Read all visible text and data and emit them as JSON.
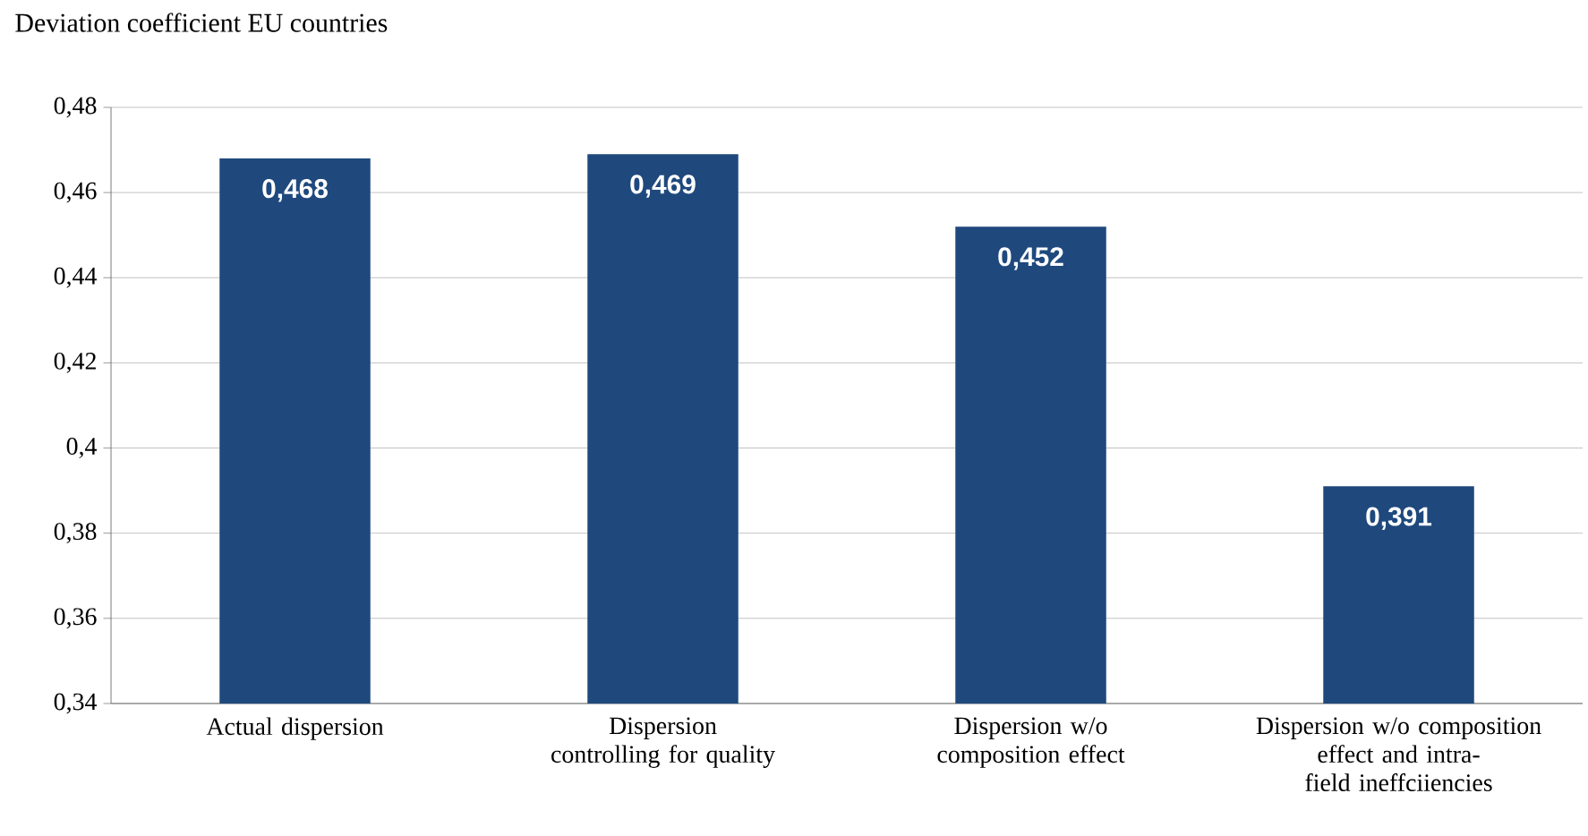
{
  "chart_data": {
    "type": "bar",
    "title": "Deviation coefficient EU countries",
    "categories": [
      "Actual dispersion",
      "Dispersion controlling for quality",
      "Dispersion w/o composition effect",
      "Dispersion w/o composition effect and intra-field ineffciiencies"
    ],
    "values": [
      0.468,
      0.469,
      0.452,
      0.391
    ],
    "value_labels": [
      "0,468",
      "0,469",
      "0,452",
      "0,391"
    ],
    "color": "#1f497d",
    "ylim": [
      0.34,
      0.48
    ],
    "yticks": [
      {
        "value": 0.34,
        "label": "0,34"
      },
      {
        "value": 0.36,
        "label": "0,36"
      },
      {
        "value": 0.38,
        "label": "0,38"
      },
      {
        "value": 0.4,
        "label": "0,4"
      },
      {
        "value": 0.42,
        "label": "0,42"
      },
      {
        "value": 0.44,
        "label": "0,44"
      },
      {
        "value": 0.46,
        "label": "0,46"
      },
      {
        "value": 0.48,
        "label": "0,48"
      }
    ],
    "grid": true
  }
}
